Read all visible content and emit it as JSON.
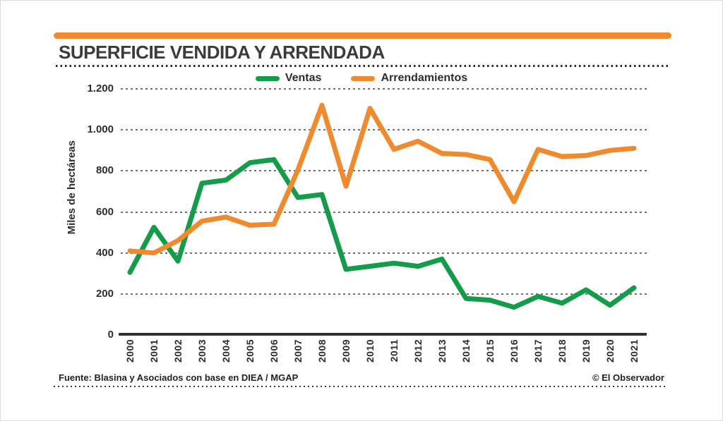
{
  "header": {
    "title": "SUPERFICIE VENDIDA Y ARRENDADA"
  },
  "legend": [
    {
      "label": "Ventas",
      "color": "#159c4b"
    },
    {
      "label": "Arrendamientos",
      "color": "#ef8b2e"
    }
  ],
  "y_axis": {
    "label": "Miles  de hectáreas",
    "tick_labels": [
      "1.200",
      "1.000",
      "800",
      "600",
      "400",
      "200",
      "0"
    ]
  },
  "footer": {
    "source": "Fuente: Blasina y Asociados con base en DIEA / MGAP",
    "credit": "© El Observador"
  },
  "colors": {
    "accent_bar": "#ef8b2e",
    "ventas": "#159c4b",
    "arrendamientos": "#ef8b2e",
    "grid": "#707070",
    "axis": "#303030",
    "text": "#2d2d2d"
  },
  "chart_data": {
    "type": "line",
    "x": [
      2000,
      2001,
      2002,
      2003,
      2004,
      2005,
      2006,
      2007,
      2008,
      2009,
      2010,
      2011,
      2012,
      2013,
      2014,
      2015,
      2016,
      2017,
      2018,
      2019,
      2020,
      2021
    ],
    "series": [
      {
        "name": "Ventas",
        "color": "#159c4b",
        "values": [
          305,
          525,
          360,
          740,
          755,
          840,
          855,
          670,
          685,
          320,
          335,
          350,
          335,
          370,
          178,
          170,
          135,
          188,
          155,
          220,
          145,
          230
        ]
      },
      {
        "name": "Arrendamientos",
        "color": "#ef8b2e",
        "values": [
          410,
          400,
          460,
          555,
          575,
          535,
          540,
          805,
          1120,
          725,
          1105,
          905,
          945,
          885,
          880,
          855,
          650,
          905,
          870,
          875,
          900,
          910
        ]
      }
    ],
    "title": "SUPERFICIE VENDIDA Y ARRENDADA",
    "xlabel": "",
    "ylabel": "Miles de hectáreas",
    "ylim": [
      0,
      1200
    ],
    "yticks": [
      0,
      200,
      400,
      600,
      800,
      1000,
      1200
    ],
    "grid": "horizontal-dotted",
    "legend_position": "top-center"
  }
}
